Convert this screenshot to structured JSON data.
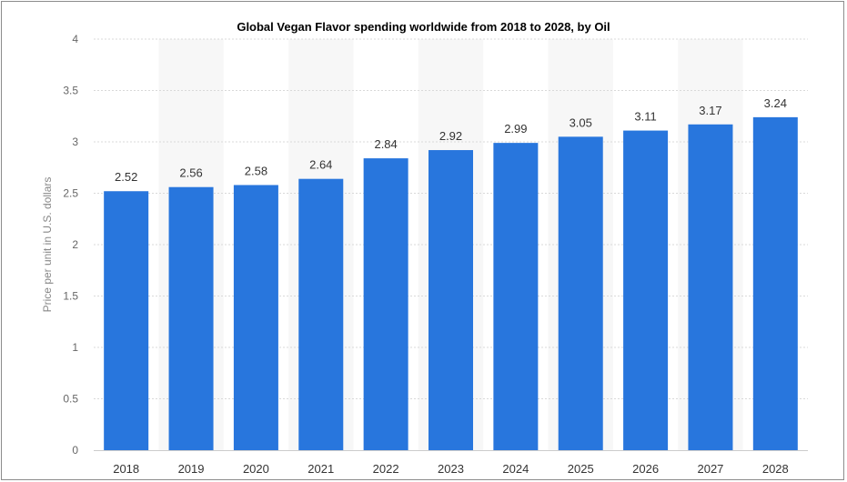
{
  "chart_data": {
    "type": "bar",
    "title": "Global Vegan Flavor spending worldwide from 2018 to 2028, by Oil",
    "xlabel": "",
    "ylabel": "Price per unit in U.S. dollars",
    "categories": [
      "2018",
      "2019",
      "2020",
      "2021",
      "2022",
      "2023",
      "2024",
      "2025",
      "2026",
      "2027",
      "2028"
    ],
    "values": [
      2.52,
      2.56,
      2.58,
      2.64,
      2.84,
      2.92,
      2.99,
      3.05,
      3.11,
      3.17,
      3.24
    ],
    "data_labels": [
      "2.52",
      "2.56",
      "2.58",
      "2.64",
      "2.84",
      "2.92",
      "2.99",
      "3.05",
      "3.11",
      "3.17",
      "3.24"
    ],
    "ylim": [
      0,
      4
    ],
    "yticks": [
      "0",
      "0.5",
      "1",
      "1.5",
      "2",
      "2.5",
      "3",
      "3.5",
      "4"
    ],
    "grid": true,
    "bar_color": "#2876dd",
    "band_color": "#f7f7f7"
  }
}
